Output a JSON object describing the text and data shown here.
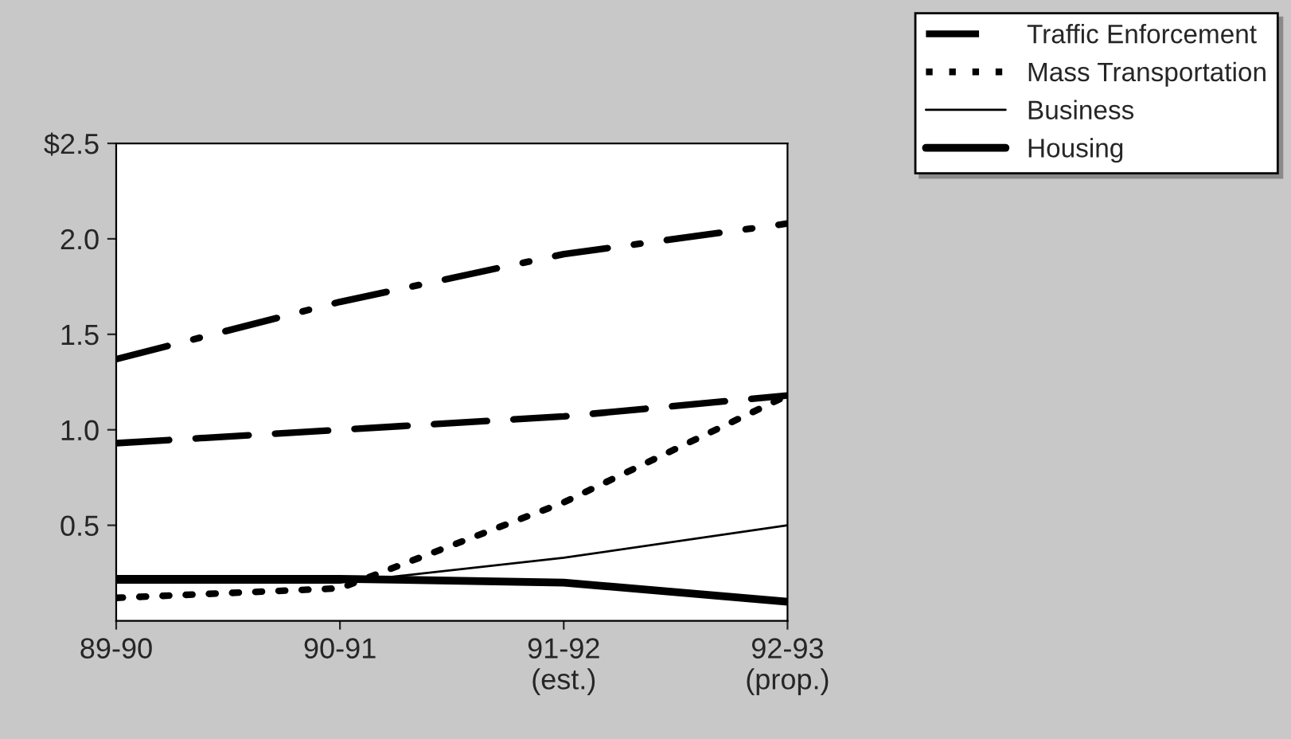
{
  "chart_data": {
    "type": "line",
    "categories": [
      "89-90",
      "90-91",
      "91-92\n(est.)",
      "92-93\n(prop.)"
    ],
    "series": [
      {
        "color": "#000000",
        "line_style": "dashdot",
        "values": [
          1.37,
          1.67,
          1.92,
          2.08
        ]
      },
      {
        "name": "Traffic Enforcement",
        "color": "#000000",
        "line_style": "dashed",
        "values": [
          0.93,
          1.0,
          1.07,
          1.18
        ]
      },
      {
        "name": "Mass Transportation",
        "color": "#000000",
        "line_style": "dotted",
        "values": [
          0.12,
          0.17,
          0.62,
          1.18
        ]
      },
      {
        "name": "Business",
        "color": "#000000",
        "line_style": "solid",
        "values": [
          0.2,
          0.2,
          0.33,
          0.5
        ]
      },
      {
        "name": "Housing",
        "color": "#000000",
        "line_style": "solid",
        "values": [
          0.22,
          0.22,
          0.2,
          0.1
        ]
      }
    ],
    "ylim": [
      0,
      2.5
    ],
    "yticks": [
      {
        "value": 0.5,
        "label": "0.5"
      },
      {
        "value": 1.0,
        "label": "1.0"
      },
      {
        "value": 1.5,
        "label": "1.5"
      },
      {
        "value": 2.0,
        "label": "2.0"
      },
      {
        "value": 2.5,
        "label": "$2.5"
      }
    ],
    "grid": false,
    "legend": "top right",
    "marker": "none"
  }
}
